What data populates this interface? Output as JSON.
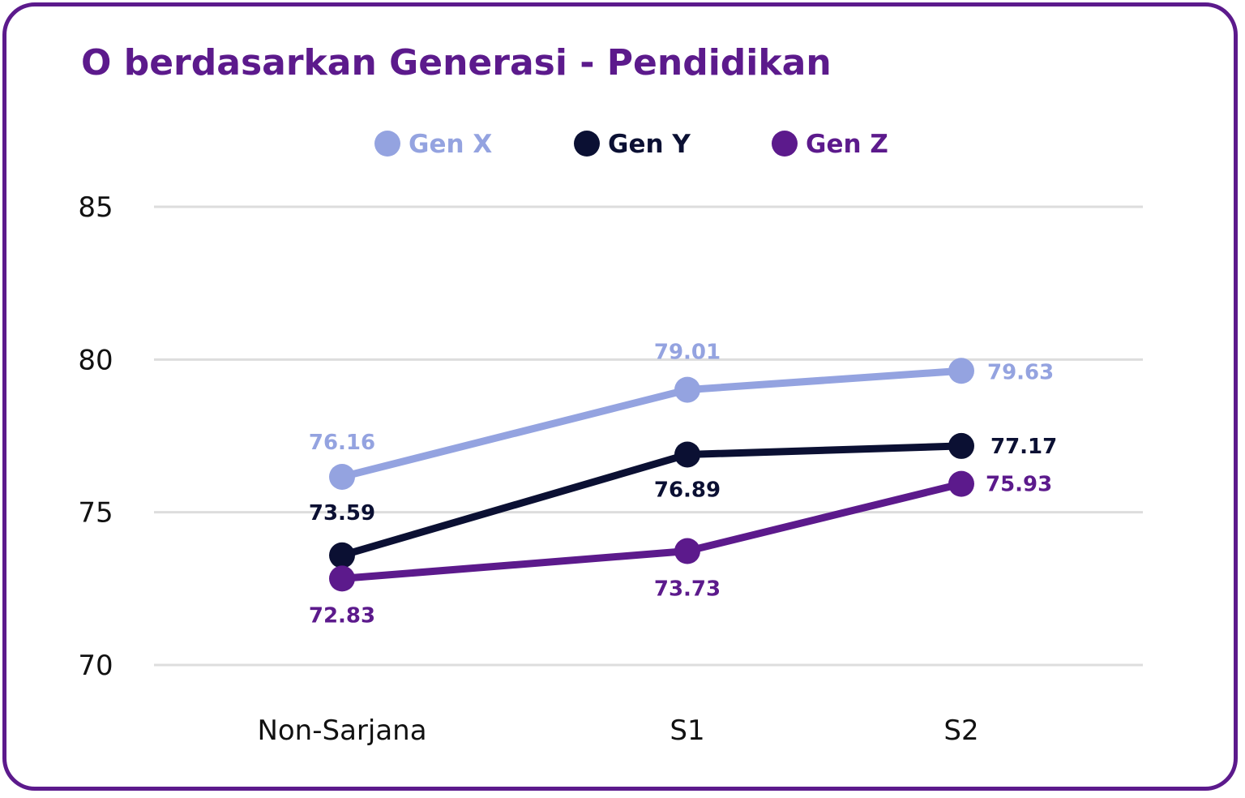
{
  "chart_data": {
    "type": "line",
    "title": "O berdasarkan Generasi - Pendidikan",
    "categories": [
      "Non-Sarjana",
      "S1",
      "S2"
    ],
    "series": [
      {
        "name": "Gen X",
        "color": "#94a3e0",
        "values": [
          76.16,
          79.01,
          79.63
        ]
      },
      {
        "name": "Gen Y",
        "color": "#0b1033",
        "values": [
          73.59,
          76.89,
          77.17
        ]
      },
      {
        "name": "Gen Z",
        "color": "#5c1a8c",
        "values": [
          72.83,
          73.73,
          75.93
        ]
      }
    ],
    "yticks": [
      70,
      75,
      80,
      85
    ],
    "ylim": [
      70,
      85
    ],
    "grid": true,
    "legend": "top-center",
    "data_labels": true,
    "xlabel": "",
    "ylabel": ""
  },
  "colors": {
    "border": "#5c1a8c",
    "title": "#5c1a8c",
    "grid": "#dddddd"
  }
}
